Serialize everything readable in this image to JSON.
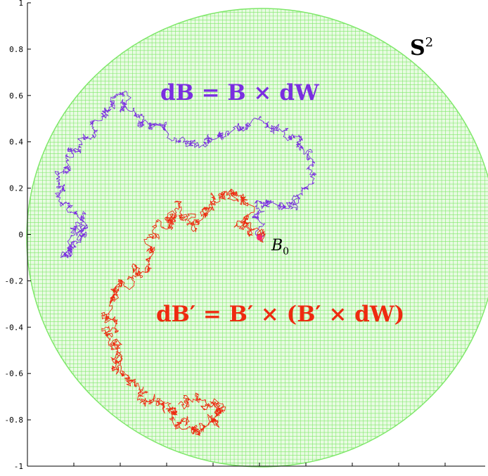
{
  "figure": {
    "sphere_label": "S",
    "sphere_label_sup": "2",
    "eq_blue": "dB = B × dW",
    "eq_red": "dB′ = B′ × (B′ × dW)",
    "start_label": "B",
    "start_label_sub": "0",
    "colors": {
      "sphere": "#7fe86a",
      "blue_path": "#7a2ee0",
      "red_path": "#ee2a10",
      "start_point": "#ff2d6a"
    }
  },
  "axes": {
    "yticks": [
      "1",
      "0.8",
      "0.6",
      "0.4",
      "0.2",
      "0",
      "-0.2",
      "-0.4",
      "-0.6",
      "-0.8",
      "-1"
    ]
  }
}
